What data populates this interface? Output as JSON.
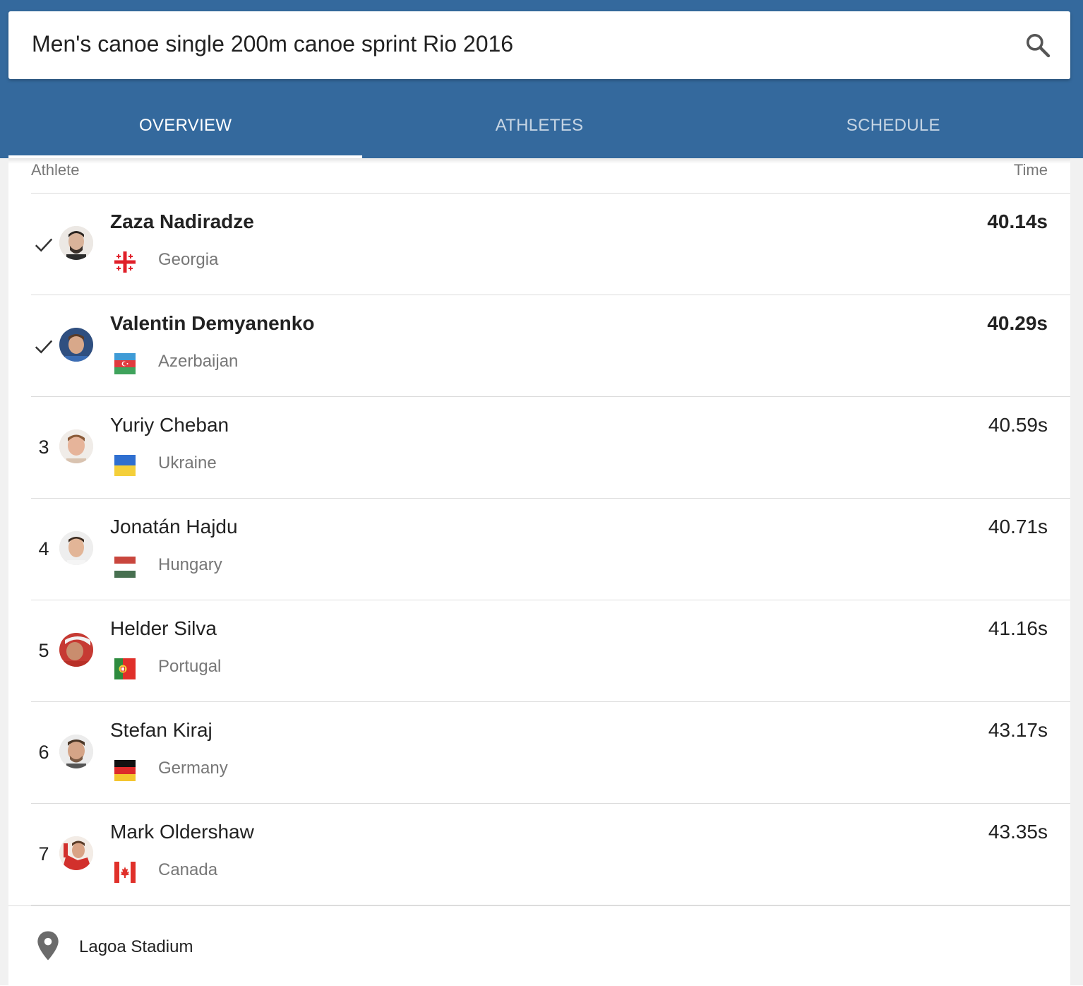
{
  "search": {
    "query": "Men's canoe single 200m canoe sprint Rio 2016"
  },
  "tabs": [
    {
      "label": "OVERVIEW",
      "active": true
    },
    {
      "label": "ATHLETES",
      "active": false
    },
    {
      "label": "SCHEDULE",
      "active": false
    }
  ],
  "table": {
    "headers": {
      "athlete": "Athlete",
      "time": "Time"
    },
    "rows": [
      {
        "rank": "",
        "qualified": true,
        "name": "Zaza Nadiradze",
        "country": "Georgia",
        "time": "40.14s",
        "flag": "georgia-flag-icon"
      },
      {
        "rank": "",
        "qualified": true,
        "name": "Valentin Demyanenko",
        "country": "Azerbaijan",
        "time": "40.29s",
        "flag": "azerbaijan-flag-icon"
      },
      {
        "rank": "3",
        "qualified": false,
        "name": "Yuriy Cheban",
        "country": "Ukraine",
        "time": "40.59s",
        "flag": "ukraine-flag-icon"
      },
      {
        "rank": "4",
        "qualified": false,
        "name": "Jonatán Hajdu",
        "country": "Hungary",
        "time": "40.71s",
        "flag": "hungary-flag-icon"
      },
      {
        "rank": "5",
        "qualified": false,
        "name": "Helder Silva",
        "country": "Portugal",
        "time": "41.16s",
        "flag": "portugal-flag-icon"
      },
      {
        "rank": "6",
        "qualified": false,
        "name": "Stefan Kiraj",
        "country": "Germany",
        "time": "43.17s",
        "flag": "germany-flag-icon"
      },
      {
        "rank": "7",
        "qualified": false,
        "name": "Mark Oldershaw",
        "country": "Canada",
        "time": "43.35s",
        "flag": "canada-flag-icon"
      }
    ]
  },
  "venue": {
    "name": "Lagoa Stadium",
    "icon": "location-pin-icon"
  },
  "colors": {
    "header": "#34699d",
    "text": "#222222",
    "muted": "#777777"
  }
}
